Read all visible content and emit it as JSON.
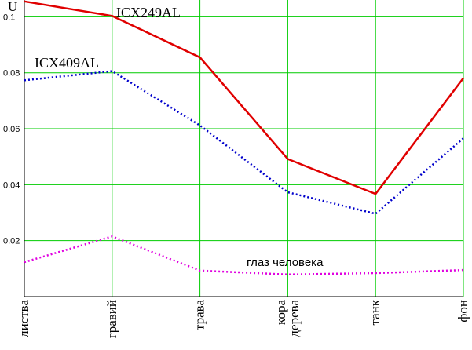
{
  "chart_data": {
    "type": "line",
    "ylabel": "U",
    "ylim": [
      0,
      0.106
    ],
    "yticks": [
      "0.02",
      "0.04",
      "0.06",
      "0.08",
      "0.1"
    ],
    "categories": [
      "листва",
      "гравий",
      "трава",
      "кора\nдерева",
      "танк",
      "фон"
    ],
    "grid": true,
    "series": [
      {
        "name": "ICX249AL",
        "color": "#e00000",
        "style": "solid",
        "values": [
          0.1055,
          0.1003,
          0.0855,
          0.0492,
          0.0367,
          0.0781
        ]
      },
      {
        "name": "ICX409AL",
        "color": "#0000cc",
        "style": "dotted",
        "values": [
          0.0773,
          0.0806,
          0.0612,
          0.0373,
          0.0296,
          0.0566
        ]
      },
      {
        "name": "глаз человека",
        "color": "#e000e0",
        "style": "dotted",
        "values": [
          0.0123,
          0.0215,
          0.0093,
          0.0079,
          0.0084,
          0.0095
        ]
      }
    ]
  }
}
